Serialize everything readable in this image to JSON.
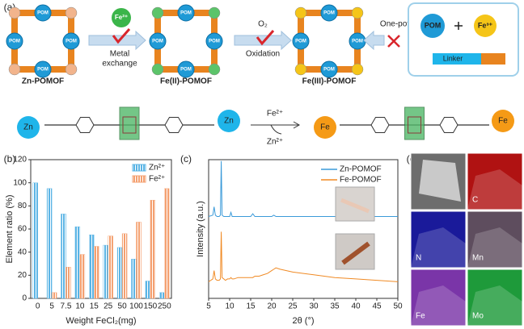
{
  "scheme": {
    "panel_label": "(a)",
    "pom": "POM",
    "frames": [
      "Zn-POMOF",
      "Fe(II)-POMOF",
      "Fe(III)-POMOF"
    ],
    "steps": {
      "ion": "Fe²⁺",
      "exchange": [
        "Metal",
        "exchange"
      ],
      "o2": "O₂",
      "oxidation": "Oxidation",
      "one_pot": "One-pot"
    },
    "precursors": {
      "pom": "POM",
      "ion": "Fe³⁺",
      "linker": "Linker"
    },
    "reaction": {
      "left_metal": "Zn",
      "right_metal": "Fe",
      "reagent": "Fe²⁺",
      "byproduct": "Zn²⁺"
    }
  },
  "chart_data": [
    {
      "type": "bar",
      "panel_label": "(b)",
      "y_label": "Element ratio (%)",
      "x_label": "Weight FeCl₂(mg)",
      "categories": [
        "0",
        "5",
        "7.5",
        "10",
        "15",
        "25",
        "50",
        "100",
        "150",
        "250"
      ],
      "series": [
        {
          "name": "Zn²⁺",
          "color": "#5ab4e5",
          "values": [
            100,
            95,
            73,
            62,
            55,
            46,
            44,
            34,
            15,
            5
          ]
        },
        {
          "name": "Fe²⁺",
          "color": "#f4a070",
          "values": [
            0,
            5,
            27,
            38,
            45,
            54,
            56,
            66,
            85,
            95
          ]
        }
      ],
      "ylim": [
        0,
        120
      ],
      "yticks": [
        0,
        20,
        40,
        60,
        80,
        100,
        120
      ],
      "legend": "upper right"
    },
    {
      "type": "line",
      "panel_label": "(c)",
      "y_label": "Intensity (a.u.)",
      "x_label": "2θ (°)",
      "x": [
        5,
        6,
        6.3,
        6.6,
        7,
        7.5,
        7.8,
        8,
        8.2,
        8.6,
        9,
        9.5,
        10,
        10.3,
        10.6,
        11,
        12,
        13,
        14,
        15,
        15.5,
        16,
        17,
        18,
        19,
        20,
        20.5,
        21,
        22,
        25,
        30,
        35,
        40,
        45,
        50
      ],
      "series": [
        {
          "name": "Zn-POMOF",
          "color": "#3a9ad9",
          "values": [
            59,
            60,
            66,
            60,
            59,
            59,
            60,
            99,
            60,
            59,
            59,
            59,
            59,
            62,
            59,
            59,
            59,
            59,
            59,
            59,
            61,
            59,
            59,
            59,
            59,
            59,
            60,
            59,
            59,
            59,
            59,
            59,
            59,
            59,
            59
          ]
        },
        {
          "name": "Fe-POMOF",
          "color": "#f08a24",
          "values": [
            12,
            14,
            20,
            14,
            13,
            13,
            14,
            48,
            15,
            14,
            13,
            14,
            14,
            15,
            14,
            14,
            15,
            15,
            15,
            15,
            15,
            16,
            16,
            17,
            18,
            20,
            21,
            22,
            21,
            19,
            17,
            15,
            14,
            13,
            12
          ]
        }
      ],
      "xlim": [
        5,
        50
      ],
      "xticks": [
        5,
        10,
        15,
        20,
        25,
        30,
        35,
        40,
        45,
        50
      ],
      "ylim": [
        0,
        100
      ],
      "legend": "upper right"
    }
  ],
  "eds": {
    "panel_label": "(d)",
    "maps": [
      "C",
      "N",
      "Mn",
      "Fe",
      "Mo"
    ]
  }
}
